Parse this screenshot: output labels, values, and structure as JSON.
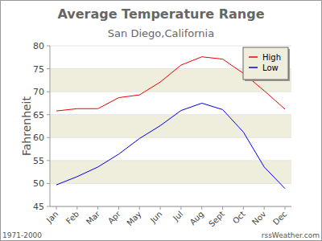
{
  "chart_data": {
    "type": "line",
    "title": "Average Temperature Range",
    "subtitle": "San Diego,California",
    "y_label": "Fahrenheit",
    "annotations": [
      "1971-2000",
      "rssWeather.com"
    ],
    "categories": [
      "Jan",
      "Feb",
      "Mar",
      "Apr",
      "May",
      "Jun",
      "Jul",
      "Aug",
      "Sept",
      "Oct",
      "Nov",
      "Dec"
    ],
    "series": [
      {
        "name": "High",
        "color": "#ee0000",
        "values": [
          65.8,
          66.3,
          66.3,
          68.7,
          69.3,
          72.1,
          75.8,
          77.6,
          77.1,
          74.0,
          70.2,
          66.2
        ]
      },
      {
        "name": "Low",
        "color": "#0000ee",
        "values": [
          49.7,
          51.5,
          53.6,
          56.4,
          59.8,
          62.6,
          65.9,
          67.5,
          66.1,
          61.2,
          53.6,
          48.9
        ]
      }
    ],
    "ylim": [
      45,
      80
    ],
    "yticks": [
      45,
      50,
      55,
      60,
      65,
      70,
      75,
      80
    ],
    "grid": true,
    "legend": "upper right"
  }
}
